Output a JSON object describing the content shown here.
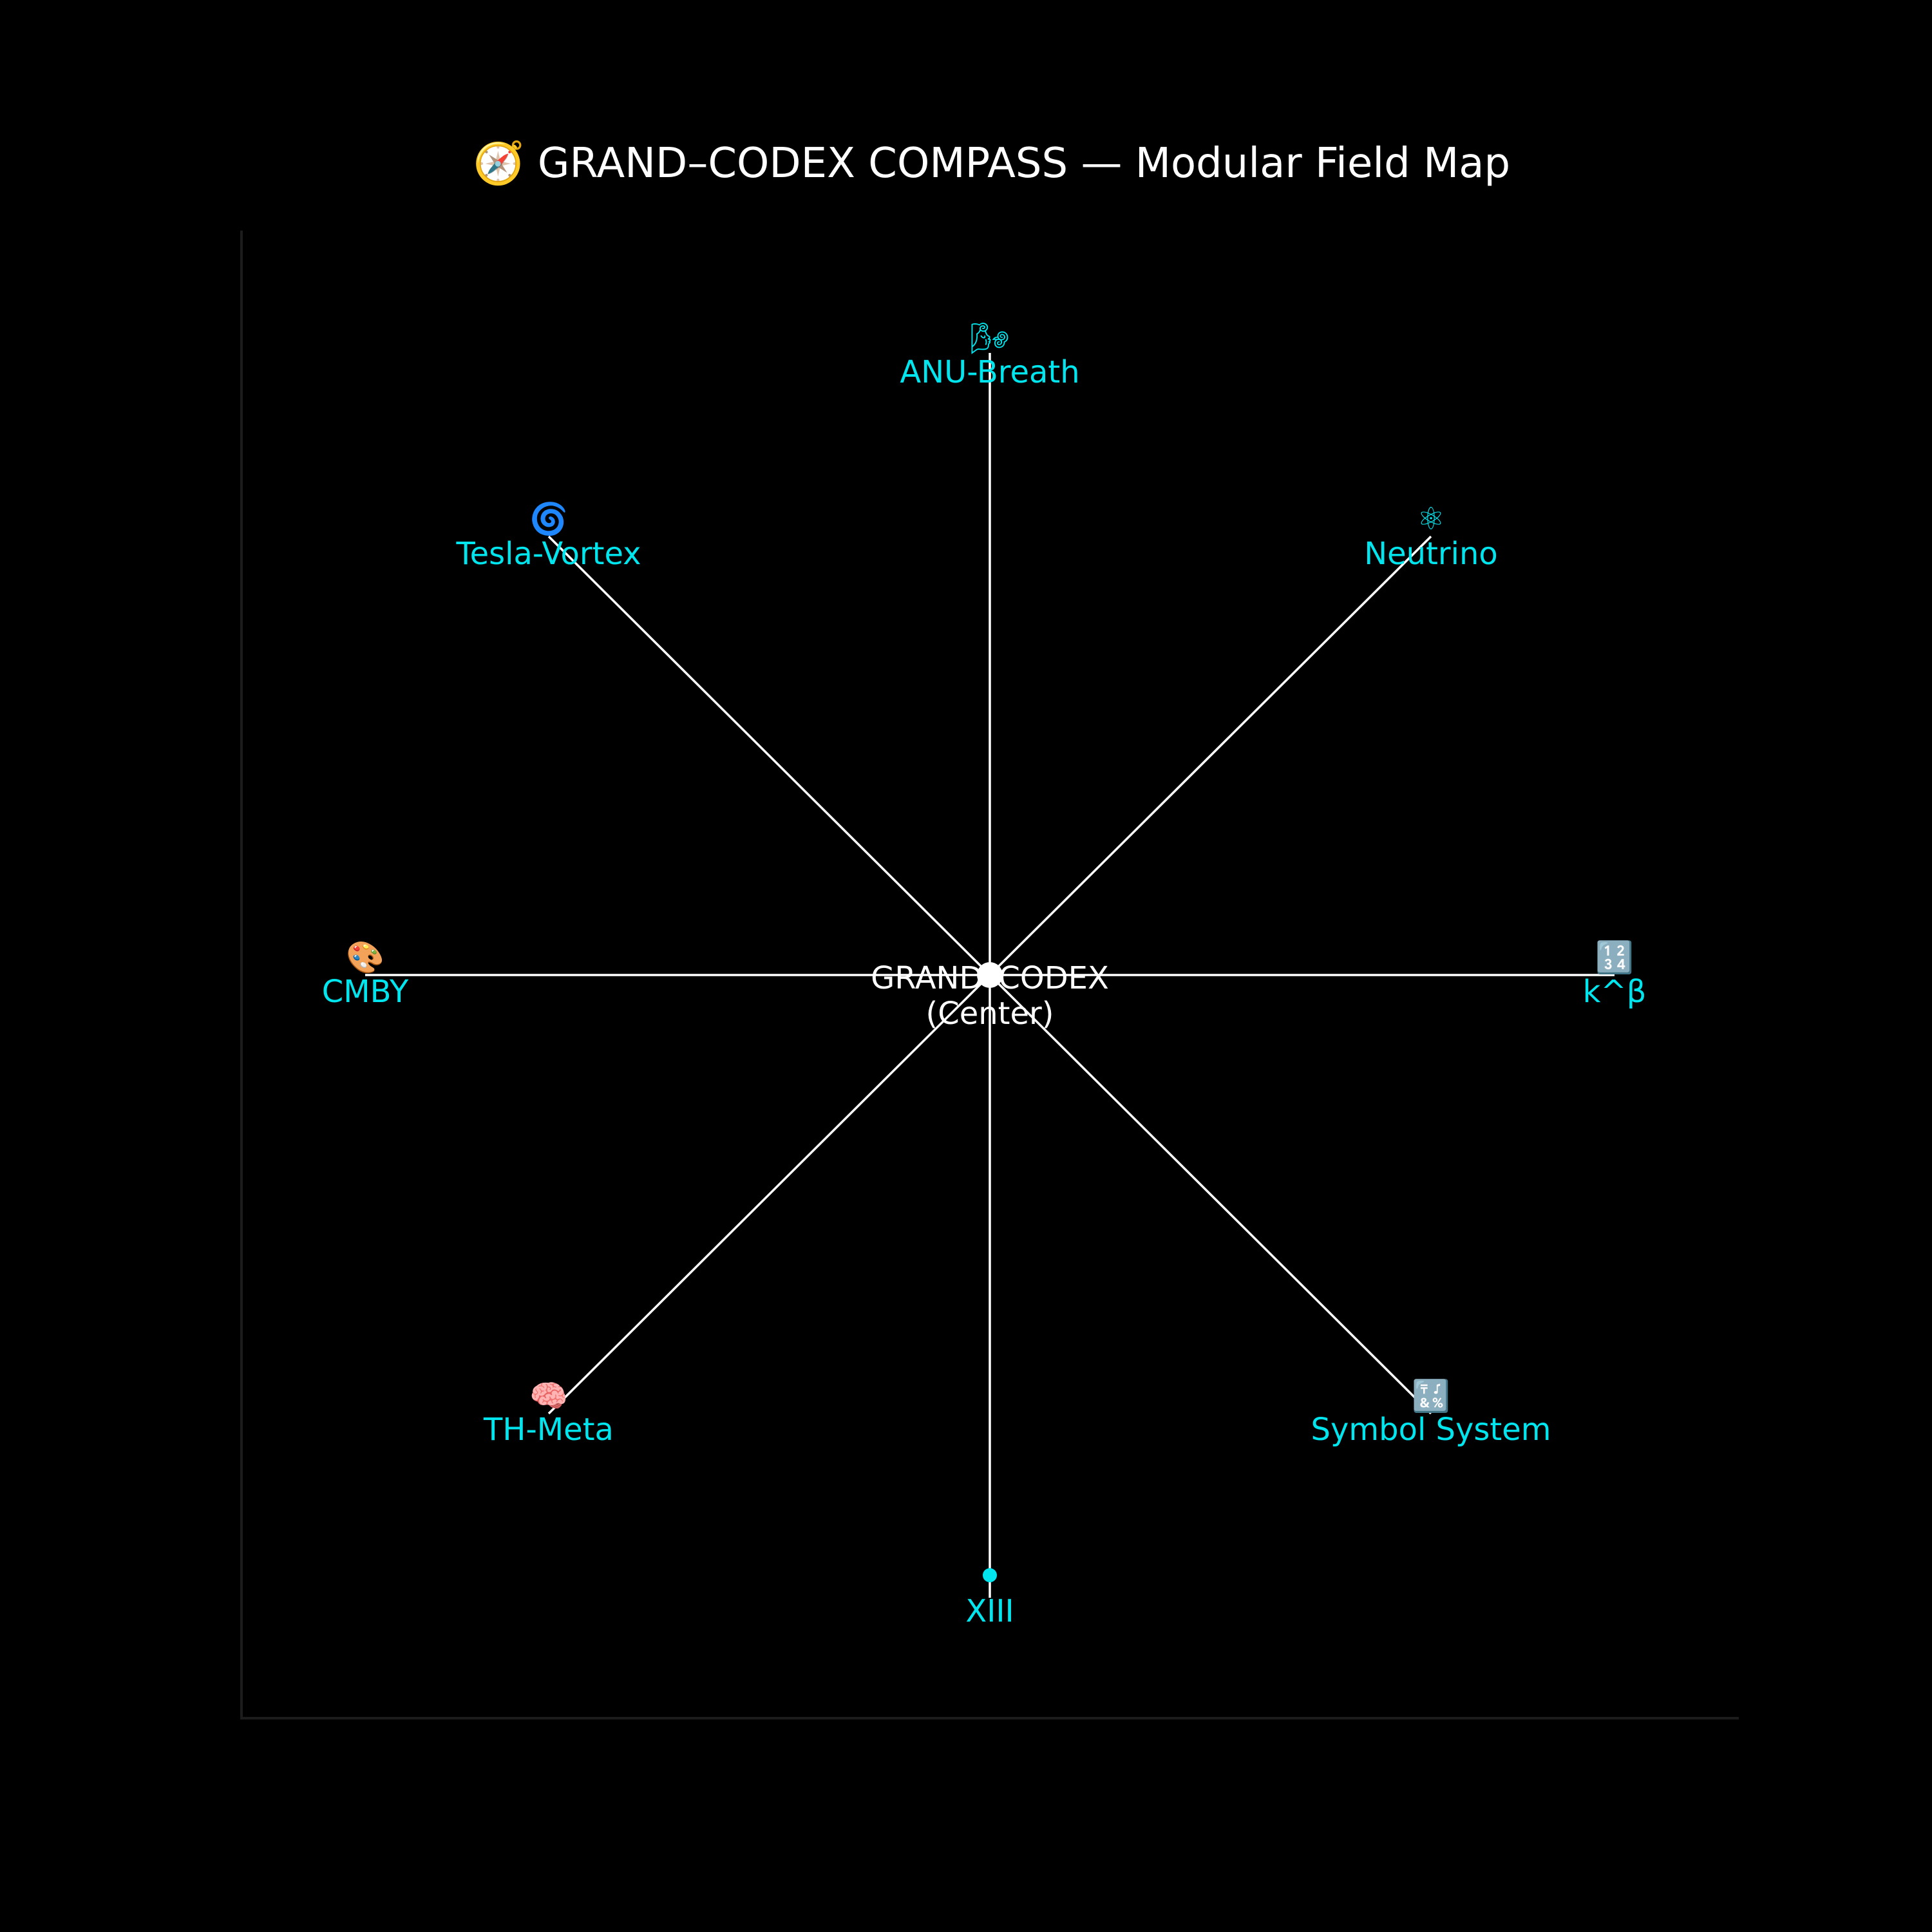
{
  "title": "🧭 GRAND–CODEX COMPASS — Modular Field Map",
  "center": {
    "line1": "GRAND–CODEX",
    "line2": "(Center)"
  },
  "nodes": [
    {
      "id": "anu-breath",
      "glyph": "🌬",
      "label": "ANU-Breath"
    },
    {
      "id": "neutrino",
      "glyph": "⚛",
      "label": "Neutrino"
    },
    {
      "id": "k-beta",
      "glyph": "🔢",
      "label": "k^β"
    },
    {
      "id": "symbol-system",
      "glyph": "🔣",
      "label": "Symbol System"
    },
    {
      "id": "xiii",
      "glyph": "",
      "label": "XIII"
    },
    {
      "id": "th-meta",
      "glyph": "🧠",
      "label": "TH-Meta"
    },
    {
      "id": "cmby",
      "glyph": "🎨",
      "label": "CMBY"
    },
    {
      "id": "tesla-vortex",
      "glyph": "🌀",
      "label": "Tesla-Vortex"
    }
  ],
  "colors": {
    "background": "#000000",
    "spoke": "#ffffff",
    "node_text": "#00e5ee",
    "center": "#ffffff",
    "end_marker": "#00e5ee"
  }
}
